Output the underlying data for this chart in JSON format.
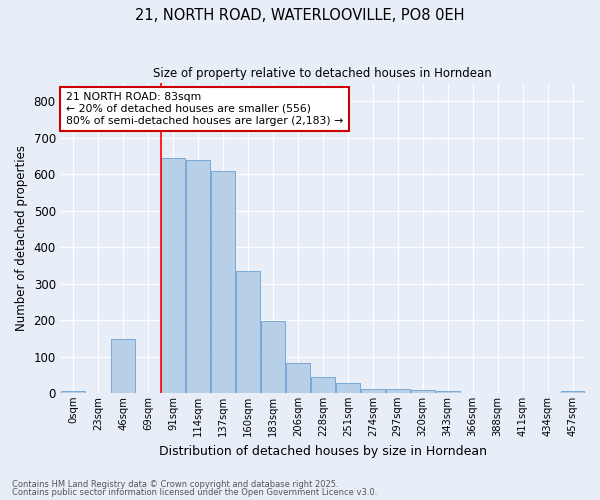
{
  "title": "21, NORTH ROAD, WATERLOOVILLE, PO8 0EH",
  "subtitle": "Size of property relative to detached houses in Horndean",
  "xlabel": "Distribution of detached houses by size in Horndean",
  "ylabel": "Number of detached properties",
  "bin_labels": [
    "0sqm",
    "23sqm",
    "46sqm",
    "69sqm",
    "91sqm",
    "114sqm",
    "137sqm",
    "160sqm",
    "183sqm",
    "206sqm",
    "228sqm",
    "251sqm",
    "274sqm",
    "297sqm",
    "320sqm",
    "343sqm",
    "366sqm",
    "388sqm",
    "411sqm",
    "434sqm",
    "457sqm"
  ],
  "bar_heights": [
    5,
    0,
    148,
    0,
    645,
    638,
    610,
    335,
    198,
    83,
    45,
    27,
    10,
    12,
    8,
    5,
    0,
    0,
    0,
    0,
    5
  ],
  "bar_color": "#b8cfe8",
  "bar_edge_color": "#6a9fd0",
  "background_color": "#e8eef8",
  "grid_color": "#ffffff",
  "red_line_index": 4,
  "annotation_text": "21 NORTH ROAD: 83sqm\n← 20% of detached houses are smaller (556)\n80% of semi-detached houses are larger (2,183) →",
  "annotation_box_color": "#ffffff",
  "annotation_box_edge_color": "#cc0000",
  "footer_line1": "Contains HM Land Registry data © Crown copyright and database right 2025.",
  "footer_line2": "Contains public sector information licensed under the Open Government Licence v3.0.",
  "ylim": [
    0,
    850
  ],
  "yticks": [
    0,
    100,
    200,
    300,
    400,
    500,
    600,
    700,
    800
  ]
}
